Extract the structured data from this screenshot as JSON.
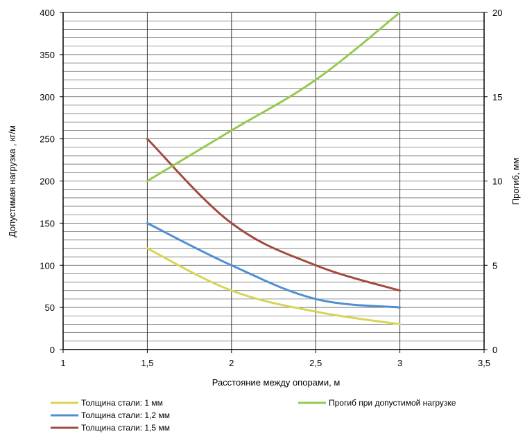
{
  "chart_data": {
    "type": "line",
    "xlabel": "Расстояние между опорами, м",
    "ylabel": "Допустимая нагрузка , кг/м",
    "y2label": "Прогиб, мм",
    "xlim": [
      1,
      3.5
    ],
    "ylim": [
      0,
      400
    ],
    "y2lim": [
      0,
      20
    ],
    "x_ticks": [
      "1",
      "1,5",
      "2",
      "2,5",
      "3",
      "3,5"
    ],
    "y_ticks": [
      "0",
      "50",
      "100",
      "150",
      "200",
      "250",
      "300",
      "350",
      "400"
    ],
    "y2_ticks": [
      "0",
      "5",
      "10",
      "15",
      "20"
    ],
    "grid": true,
    "legend_position": "bottom",
    "series": [
      {
        "name": "Толщина стали: 1 мм",
        "axis": "left",
        "color": "#d9d356",
        "x": [
          1.5,
          2,
          2.5,
          3
        ],
        "values": [
          120,
          70,
          45,
          30
        ]
      },
      {
        "name": "Толщина стали: 1,2 мм",
        "axis": "left",
        "color": "#4f8fd1",
        "x": [
          1.5,
          2,
          2.5,
          3
        ],
        "values": [
          150,
          100,
          60,
          50
        ]
      },
      {
        "name": "Толщина стали: 1,5 мм",
        "axis": "left",
        "color": "#a24a3c",
        "x": [
          1.5,
          2,
          2.5,
          3
        ],
        "values": [
          250,
          150,
          100,
          70
        ]
      },
      {
        "name": "Прогиб при допустимой нагрузке",
        "axis": "right",
        "color": "#97c94e",
        "x": [
          1.5,
          2,
          2.5,
          3
        ],
        "values": [
          10,
          13,
          16,
          20
        ]
      }
    ]
  }
}
